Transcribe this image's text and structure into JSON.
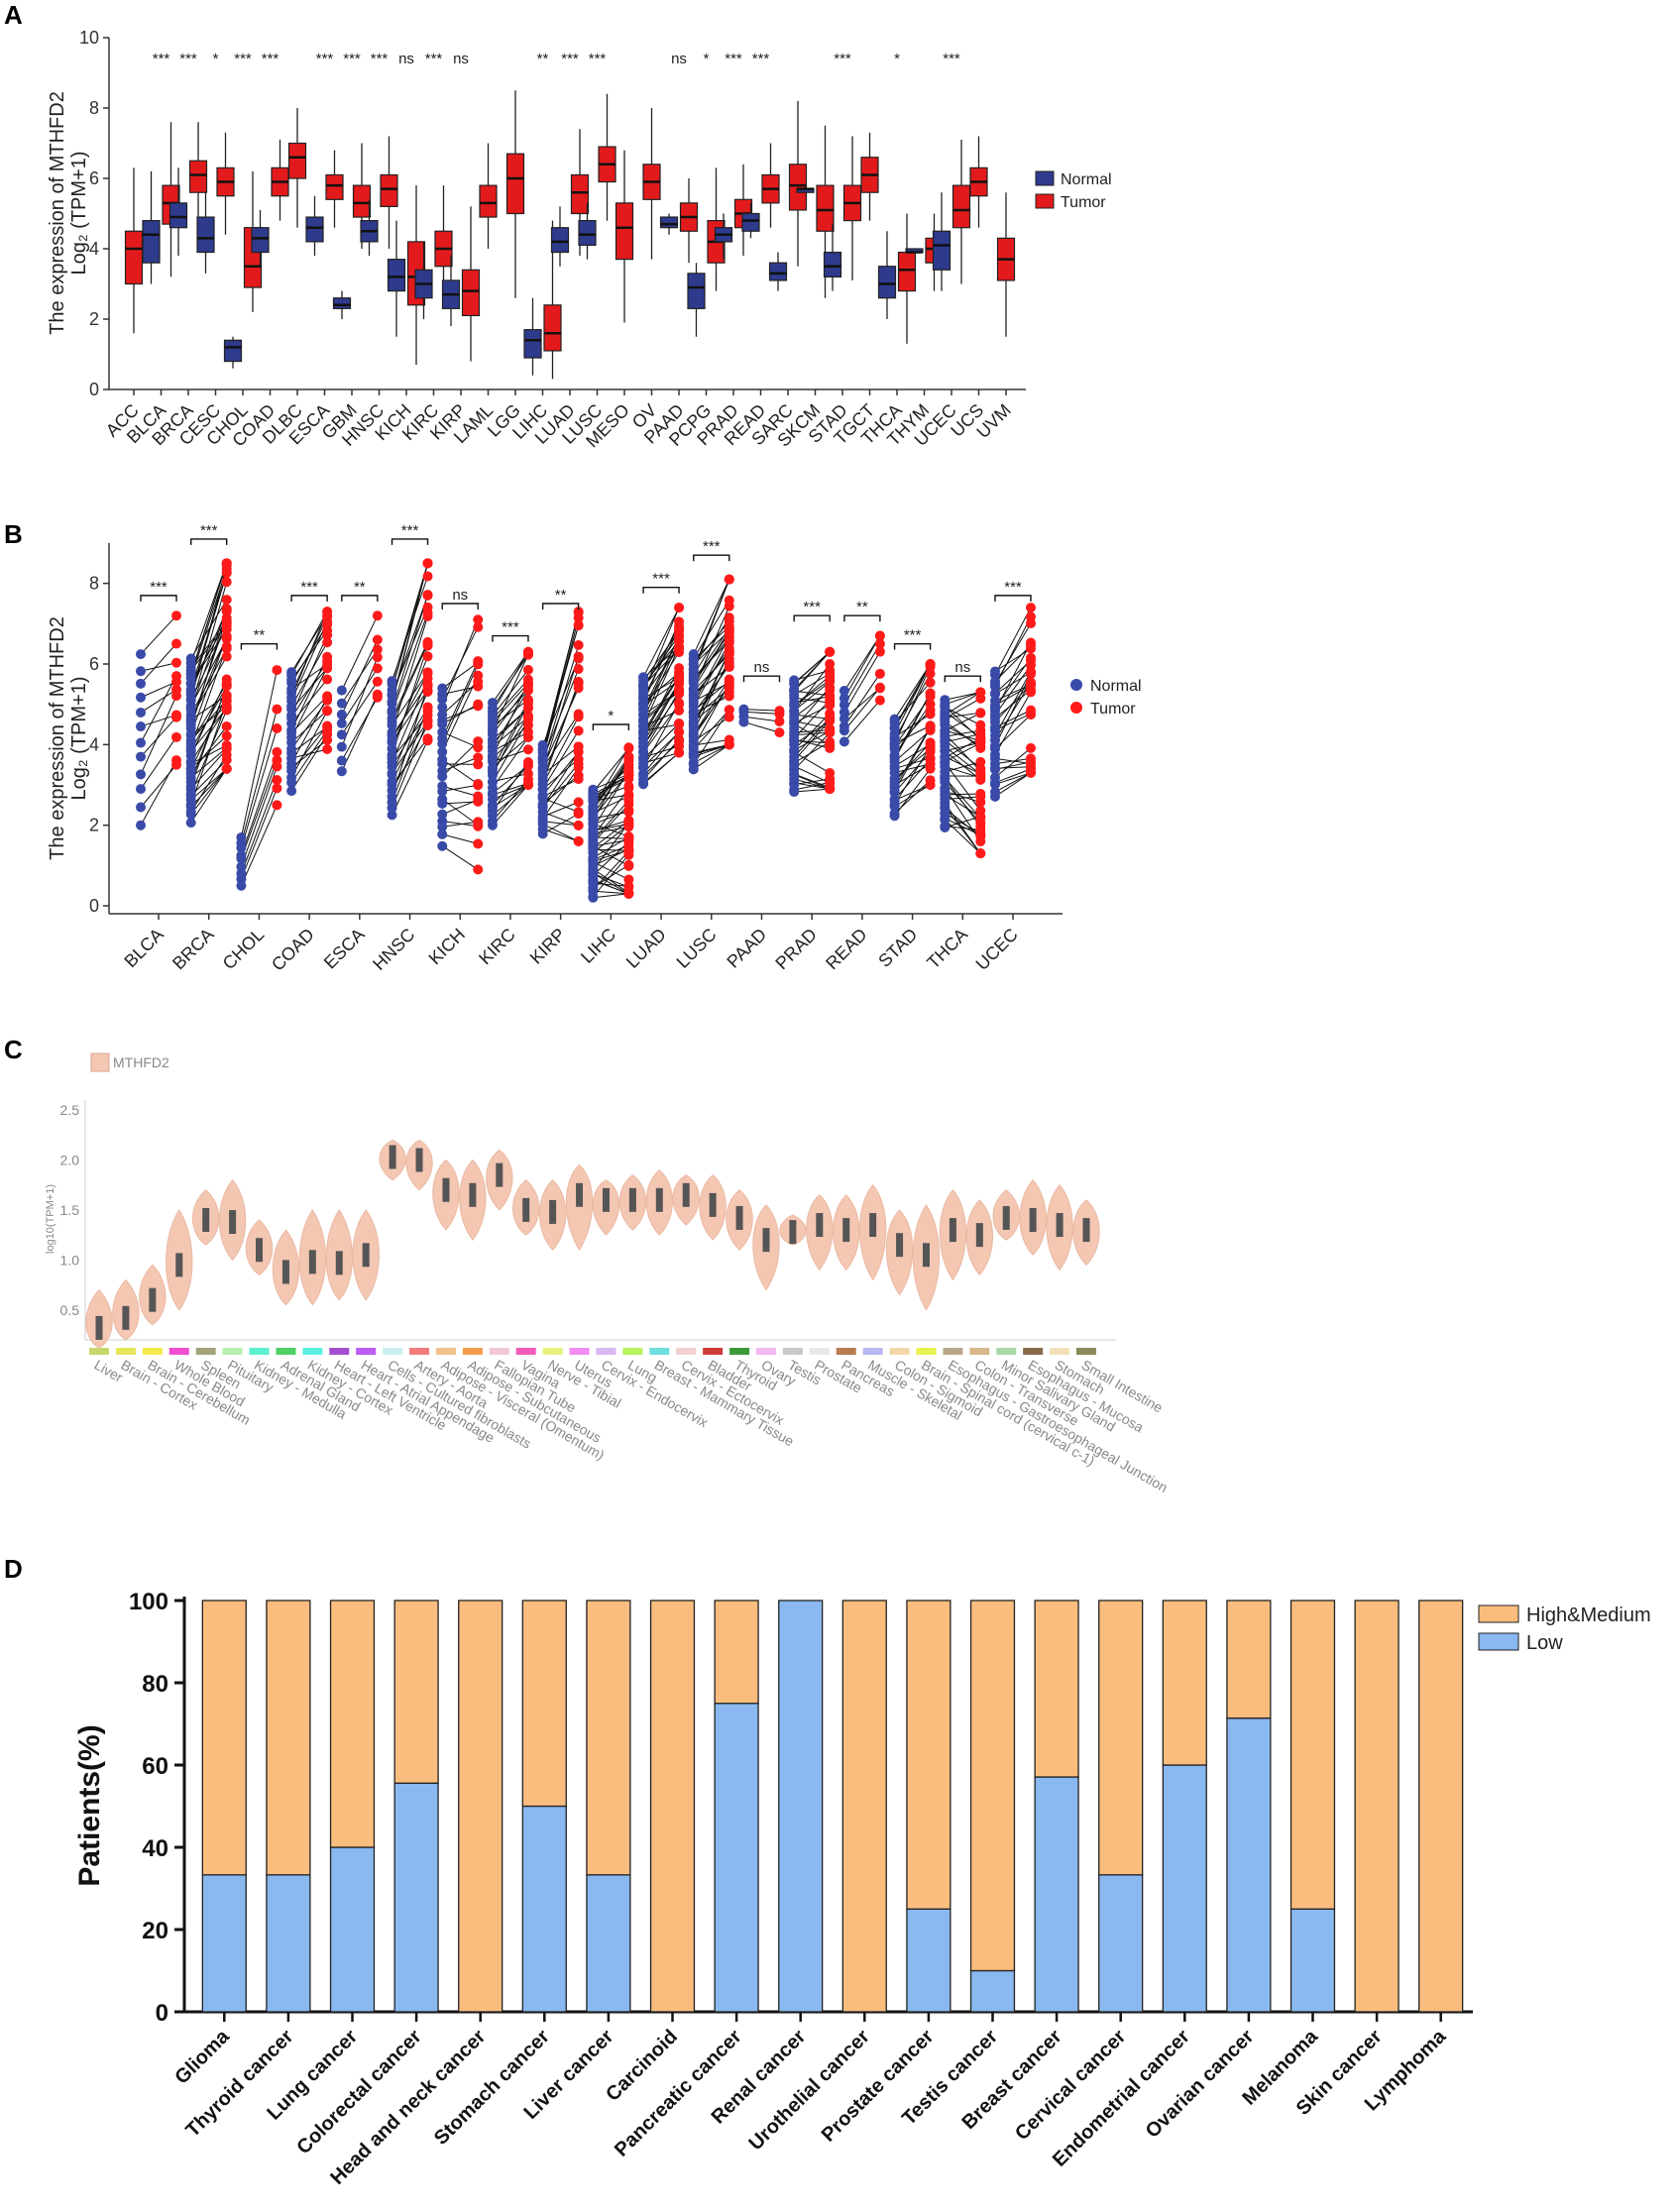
{
  "panels": {
    "a": "A",
    "b": "B",
    "c": "C",
    "d": "D"
  },
  "colors": {
    "normal": "#2e3a8c",
    "tumor": "#e31a1c",
    "violin": "#f4c7b3",
    "violin_box": "#555555",
    "high_medium": "#fbbd7e",
    "low": "#8ab8f0",
    "b_normal_pt": "#3a4aa8",
    "b_tumor_pt": "#ff1a1a"
  },
  "chart_data": [
    {
      "type": "box",
      "panel": "A",
      "ylabel_line1": "The expression of MTHFD2",
      "ylabel_line2": "Log₂ (TPM+1)",
      "ylim": [
        0,
        10
      ],
      "yticks": [
        0,
        2,
        4,
        6,
        8,
        10
      ],
      "legend": [
        "Normal",
        "Tumor"
      ],
      "categories": [
        "ACC",
        "BLCA",
        "BRCA",
        "CESC",
        "CHOL",
        "COAD",
        "DLBC",
        "ESCA",
        "GBM",
        "HNSC",
        "KICH",
        "KIRC",
        "KIRP",
        "LAML",
        "LGG",
        "LIHC",
        "LUAD",
        "LUSC",
        "MESO",
        "OV",
        "PAAD",
        "PCPG",
        "PRAD",
        "READ",
        "SARC",
        "SKCM",
        "STAD",
        "TGCT",
        "THCA",
        "THYM",
        "UCEC",
        "UCS",
        "UVM"
      ],
      "significance": [
        "",
        "***",
        "***",
        "*",
        "***",
        "***",
        "",
        "***",
        "***",
        "***",
        "ns",
        "***",
        "ns",
        "",
        "",
        "**",
        "***",
        "***",
        "",
        "",
        "ns",
        "*",
        "***",
        "***",
        "",
        "",
        "***",
        "",
        "*",
        "",
        "***",
        "",
        ""
      ],
      "normal": [
        null,
        {
          "min": 3.0,
          "q1": 3.6,
          "median": 4.4,
          "q3": 4.8,
          "max": 6.2
        },
        {
          "min": 3.8,
          "q1": 4.6,
          "median": 4.9,
          "q3": 5.3,
          "max": 6.3
        },
        {
          "min": 3.3,
          "q1": 3.9,
          "median": 4.3,
          "q3": 4.9,
          "max": 5.6
        },
        {
          "min": 0.6,
          "q1": 0.8,
          "median": 1.2,
          "q3": 1.4,
          "max": 1.5
        },
        {
          "min": 3.5,
          "q1": 3.9,
          "median": 4.3,
          "q3": 4.6,
          "max": 5.1
        },
        null,
        {
          "min": 3.8,
          "q1": 4.2,
          "median": 4.6,
          "q3": 4.9,
          "max": 5.5
        },
        {
          "min": 2.0,
          "q1": 2.3,
          "median": 2.4,
          "q3": 2.6,
          "max": 2.8
        },
        {
          "min": 3.8,
          "q1": 4.2,
          "median": 4.5,
          "q3": 4.8,
          "max": 5.4
        },
        {
          "min": 1.5,
          "q1": 2.8,
          "median": 3.2,
          "q3": 3.7,
          "max": 4.8
        },
        {
          "min": 2.0,
          "q1": 2.6,
          "median": 3.0,
          "q3": 3.4,
          "max": 4.2
        },
        {
          "min": 1.8,
          "q1": 2.3,
          "median": 2.7,
          "q3": 3.1,
          "max": 3.8
        },
        null,
        null,
        {
          "min": 0.4,
          "q1": 0.9,
          "median": 1.4,
          "q3": 1.7,
          "max": 2.6
        },
        {
          "min": 3.5,
          "q1": 3.9,
          "median": 4.2,
          "q3": 4.6,
          "max": 5.2
        },
        {
          "min": 3.7,
          "q1": 4.1,
          "median": 4.4,
          "q3": 4.8,
          "max": 5.3
        },
        null,
        null,
        {
          "min": 4.4,
          "q1": 4.6,
          "median": 4.7,
          "q3": 4.9,
          "max": 5.0
        },
        {
          "min": 1.5,
          "q1": 2.3,
          "median": 2.9,
          "q3": 3.3,
          "max": 3.6
        },
        {
          "min": 3.7,
          "q1": 4.2,
          "median": 4.4,
          "q3": 4.6,
          "max": 5.0
        },
        {
          "min": 4.3,
          "q1": 4.5,
          "median": 4.8,
          "q3": 5.0,
          "max": 5.3
        },
        {
          "min": 2.8,
          "q1": 3.1,
          "median": 3.3,
          "q3": 3.6,
          "max": 3.9
        },
        {
          "min": 5.6,
          "q1": 5.6,
          "median": 5.7,
          "q3": 5.7,
          "max": 5.8
        },
        {
          "min": 2.8,
          "q1": 3.2,
          "median": 3.5,
          "q3": 3.9,
          "max": 4.7
        },
        null,
        {
          "min": 2.0,
          "q1": 2.6,
          "median": 3.0,
          "q3": 3.5,
          "max": 4.5
        },
        {
          "min": 3.9,
          "q1": 3.9,
          "median": 3.9,
          "q3": 4.0,
          "max": 4.0
        },
        {
          "min": 2.8,
          "q1": 3.4,
          "median": 4.1,
          "q3": 4.5,
          "max": 5.6
        },
        null,
        null
      ],
      "tumor": [
        {
          "min": 1.6,
          "q1": 3.0,
          "median": 4.0,
          "q3": 4.5,
          "max": 6.3
        },
        {
          "min": 3.2,
          "q1": 4.7,
          "median": 5.3,
          "q3": 5.8,
          "max": 7.6
        },
        {
          "min": 4.6,
          "q1": 5.6,
          "median": 6.1,
          "q3": 6.5,
          "max": 7.6
        },
        {
          "min": 4.4,
          "q1": 5.5,
          "median": 5.9,
          "q3": 6.3,
          "max": 7.3
        },
        {
          "min": 2.2,
          "q1": 2.9,
          "median": 3.5,
          "q3": 4.6,
          "max": 6.2
        },
        {
          "min": 4.8,
          "q1": 5.5,
          "median": 5.9,
          "q3": 6.3,
          "max": 7.1
        },
        {
          "min": 4.6,
          "q1": 6.0,
          "median": 6.6,
          "q3": 7.0,
          "max": 8.0
        },
        {
          "min": 4.6,
          "q1": 5.4,
          "median": 5.8,
          "q3": 6.1,
          "max": 6.8
        },
        {
          "min": 4.0,
          "q1": 4.9,
          "median": 5.3,
          "q3": 5.8,
          "max": 7.0
        },
        {
          "min": 4.0,
          "q1": 5.2,
          "median": 5.7,
          "q3": 6.1,
          "max": 7.2
        },
        {
          "min": 0.7,
          "q1": 2.4,
          "median": 3.2,
          "q3": 4.2,
          "max": 5.8
        },
        {
          "min": 2.5,
          "q1": 3.5,
          "median": 4.0,
          "q3": 4.5,
          "max": 5.8
        },
        {
          "min": 0.8,
          "q1": 2.1,
          "median": 2.8,
          "q3": 3.4,
          "max": 5.2
        },
        {
          "min": 4.0,
          "q1": 4.9,
          "median": 5.3,
          "q3": 5.8,
          "max": 7.0
        },
        {
          "min": 2.6,
          "q1": 5.0,
          "median": 6.0,
          "q3": 6.7,
          "max": 8.5
        },
        {
          "min": 0.3,
          "q1": 1.1,
          "median": 1.6,
          "q3": 2.4,
          "max": 4.8
        },
        {
          "min": 3.8,
          "q1": 5.0,
          "median": 5.6,
          "q3": 6.1,
          "max": 7.4
        },
        {
          "min": 4.8,
          "q1": 5.9,
          "median": 6.4,
          "q3": 6.9,
          "max": 8.4
        },
        {
          "min": 1.9,
          "q1": 3.7,
          "median": 4.6,
          "q3": 5.3,
          "max": 6.8
        },
        {
          "min": 3.7,
          "q1": 5.4,
          "median": 5.9,
          "q3": 6.4,
          "max": 8.0
        },
        {
          "min": 3.6,
          "q1": 4.5,
          "median": 4.9,
          "q3": 5.3,
          "max": 6.0
        },
        {
          "min": 2.8,
          "q1": 3.6,
          "median": 4.2,
          "q3": 4.8,
          "max": 6.3
        },
        {
          "min": 3.8,
          "q1": 4.6,
          "median": 5.0,
          "q3": 5.4,
          "max": 6.4
        },
        {
          "min": 4.6,
          "q1": 5.3,
          "median": 5.7,
          "q3": 6.1,
          "max": 7.0
        },
        {
          "min": 3.5,
          "q1": 5.1,
          "median": 5.8,
          "q3": 6.4,
          "max": 8.2
        },
        {
          "min": 2.6,
          "q1": 4.5,
          "median": 5.1,
          "q3": 5.8,
          "max": 7.5
        },
        {
          "min": 3.1,
          "q1": 4.8,
          "median": 5.3,
          "q3": 5.8,
          "max": 7.2
        },
        {
          "min": 4.8,
          "q1": 5.6,
          "median": 6.1,
          "q3": 6.6,
          "max": 7.3
        },
        {
          "min": 1.3,
          "q1": 2.8,
          "median": 3.4,
          "q3": 3.9,
          "max": 5.0
        },
        {
          "min": 2.8,
          "q1": 3.6,
          "median": 4.0,
          "q3": 4.3,
          "max": 5.0
        },
        {
          "min": 3.0,
          "q1": 4.6,
          "median": 5.1,
          "q3": 5.8,
          "max": 7.1
        },
        {
          "min": 4.6,
          "q1": 5.5,
          "median": 5.9,
          "q3": 6.3,
          "max": 7.2
        },
        {
          "min": 1.5,
          "q1": 3.1,
          "median": 3.7,
          "q3": 4.3,
          "max": 5.6
        }
      ]
    },
    {
      "type": "paired-scatter",
      "panel": "B",
      "ylabel_line1": "The expression of MTHFD2",
      "ylabel_line2": "Log₂ (TPM+1)",
      "ylim": [
        0,
        9
      ],
      "yticks": [
        0,
        2,
        4,
        6,
        8
      ],
      "legend": [
        "Normal",
        "Tumor"
      ],
      "categories": [
        "BLCA",
        "BRCA",
        "CHOL",
        "COAD",
        "ESCA",
        "HNSC",
        "KICH",
        "KIRC",
        "KIRP",
        "LIHC",
        "LUAD",
        "LUSC",
        "PAAD",
        "PRAD",
        "READ",
        "STAD",
        "THCA",
        "UCEC"
      ],
      "significance": [
        "***",
        "***",
        "**",
        "***",
        "**",
        "***",
        "ns",
        "***",
        "**",
        "*",
        "***",
        "***",
        "ns",
        "***",
        "**",
        "***",
        "ns",
        "***"
      ],
      "bracket_y": [
        7.7,
        9.1,
        6.5,
        7.7,
        7.7,
        9.1,
        7.5,
        6.7,
        7.5,
        4.5,
        7.9,
        8.7,
        5.7,
        7.2,
        7.2,
        6.5,
        5.7,
        7.7
      ],
      "normal_range": [
        [
          2.0,
          6.2
        ],
        [
          2.1,
          6.1
        ],
        [
          0.5,
          1.7
        ],
        [
          2.9,
          5.8
        ],
        [
          3.3,
          5.3
        ],
        [
          2.3,
          5.6
        ],
        [
          1.5,
          5.4
        ],
        [
          2.0,
          5.0
        ],
        [
          1.8,
          4.0
        ],
        [
          0.2,
          2.9
        ],
        [
          3.0,
          5.7
        ],
        [
          3.4,
          6.2
        ],
        [
          4.6,
          4.9
        ],
        [
          2.8,
          5.6
        ],
        [
          4.1,
          5.3
        ],
        [
          2.2,
          4.6
        ],
        [
          1.9,
          5.1
        ],
        [
          2.7,
          5.8
        ]
      ],
      "tumor_range": [
        [
          3.5,
          7.2
        ],
        [
          3.4,
          8.5
        ],
        [
          2.5,
          6.0
        ],
        [
          3.8,
          7.3
        ],
        [
          5.0,
          7.2
        ],
        [
          4.1,
          8.5
        ],
        [
          0.9,
          7.1
        ],
        [
          3.0,
          6.3
        ],
        [
          1.6,
          7.3
        ],
        [
          0.3,
          4.0
        ],
        [
          3.8,
          7.4
        ],
        [
          4.0,
          8.1
        ],
        [
          4.3,
          5.0
        ],
        [
          2.9,
          6.3
        ],
        [
          5.1,
          6.7
        ],
        [
          3.0,
          6.0
        ],
        [
          1.3,
          5.3
        ],
        [
          3.3,
          7.4
        ]
      ],
      "pairs": [
        12,
        48,
        9,
        26,
        8,
        30,
        24,
        34,
        30,
        50,
        44,
        44,
        4,
        40,
        8,
        30,
        42,
        30
      ]
    },
    {
      "type": "violin",
      "panel": "C",
      "legend": [
        "MTHFD2"
      ],
      "ylabel": "log10(TPM+1)",
      "ylim": [
        0.2,
        2.6
      ],
      "yticks": [
        0.5,
        1.0,
        1.5,
        2.0,
        2.5
      ],
      "tissues": [
        "Liver",
        "Brain - Cortex",
        "Brain - Cerebellum",
        "Whole Blood",
        "Spleen",
        "Pituitary",
        "Kidney - Medulla",
        "Adrenal Gland",
        "Kidney - Cortex",
        "Heart - Left Ventricle",
        "Heart - Atrial Appendage",
        "Cells - Cultured fibroblasts",
        "Artery - Aorta",
        "Adipose - Visceral (Omentum)",
        "Adipose - Subcutaneous",
        "Fallopian Tube",
        "Vagina",
        "Nerve - Tibial",
        "Uterus",
        "Cervix - Endocervix",
        "Lung",
        "Breast - Mammary Tissue",
        "Cervix - Ectocervix",
        "Bladder",
        "Thyroid",
        "Ovary",
        "Testis",
        "Prostate",
        "Pancreas",
        "Muscle - Skeletal",
        "Colon - Sigmoid",
        "Brain - Spinal cord (cervical c-1)",
        "Esophagus - Gastroesophageal Junction",
        "Colon - Transverse",
        "Minor Salivary Gland",
        "Esophagus - Mucosa",
        "Stomach",
        "Small Intestine"
      ],
      "tissue_colors": [
        "#c9d66b",
        "#e6e65a",
        "#f2ea4a",
        "#f04fd0",
        "#a3a37a",
        "#b8f0b0",
        "#5cf0d0",
        "#4fcf66",
        "#5af0e0",
        "#a24fcf",
        "#bb5cf2",
        "#c8eef2",
        "#f27c7c",
        "#f2c28c",
        "#f29c4a",
        "#f2c8d8",
        "#f25cb8",
        "#e6f27c",
        "#f28cf2",
        "#d8b8f2",
        "#b8f25c",
        "#6ee0e0",
        "#f2d0d0",
        "#cf3a3a",
        "#3a9a3a",
        "#f2b8f2",
        "#c8c8c8",
        "#e8e8e8",
        "#b87c4f",
        "#b8b8f2",
        "#f2d8a8",
        "#e8f24f",
        "#b8a88a",
        "#d8b88a",
        "#a8d8a8",
        "#8a6a4a",
        "#f2e0b8",
        "#8a8a5a"
      ],
      "medians": [
        0.32,
        0.42,
        0.6,
        0.95,
        1.4,
        1.38,
        1.1,
        0.88,
        0.98,
        0.97,
        1.05,
        2.03,
        2.0,
        1.7,
        1.65,
        1.85,
        1.5,
        1.48,
        1.65,
        1.6,
        1.6,
        1.6,
        1.65,
        1.55,
        1.42,
        1.2,
        1.28,
        1.35,
        1.3,
        1.35,
        1.15,
        1.05,
        1.3,
        1.25,
        1.42,
        1.4,
        1.35,
        1.3
      ],
      "lows": [
        0.12,
        0.2,
        0.35,
        0.5,
        1.15,
        1.0,
        0.85,
        0.55,
        0.55,
        0.6,
        0.6,
        1.8,
        1.7,
        1.3,
        1.2,
        1.5,
        1.25,
        1.1,
        1.1,
        1.25,
        1.3,
        1.25,
        1.35,
        1.2,
        1.1,
        0.7,
        1.15,
        0.9,
        0.9,
        0.8,
        0.65,
        0.5,
        0.8,
        0.85,
        1.2,
        1.05,
        0.9,
        0.95
      ],
      "highs": [
        0.7,
        0.8,
        0.95,
        1.5,
        1.7,
        1.8,
        1.4,
        1.3,
        1.5,
        1.5,
        1.5,
        2.2,
        2.2,
        2.0,
        2.0,
        2.1,
        1.8,
        1.8,
        1.95,
        1.8,
        1.85,
        1.9,
        1.85,
        1.85,
        1.7,
        1.55,
        1.45,
        1.65,
        1.65,
        1.75,
        1.5,
        1.55,
        1.7,
        1.6,
        1.7,
        1.8,
        1.75,
        1.6
      ]
    },
    {
      "type": "bar",
      "stacked": true,
      "panel": "D",
      "ylabel": "Patients(%)",
      "ylim": [
        0,
        100
      ],
      "yticks": [
        0,
        20,
        40,
        60,
        80,
        100
      ],
      "categories": [
        "Glioma",
        "Thyroid cancer",
        "Lung cancer",
        "Colorectal cancer",
        "Head and neck cancer",
        "Stomach cancer",
        "Liver cancer",
        "Carcinoid",
        "Pancreatic cancer",
        "Renal cancer",
        "Urothelial cancer",
        "Prostate cancer",
        "Testis cancer",
        "Breast cancer",
        "Cervical cancer",
        "Endometrial cancer",
        "Ovarian cancer",
        "Melanoma",
        "Skin cancer",
        "Lymphoma"
      ],
      "series": [
        {
          "name": "High&Medium",
          "values": [
            66.7,
            66.7,
            60.0,
            44.4,
            100,
            50.0,
            66.7,
            100,
            25.0,
            0,
            100,
            75.0,
            90.0,
            42.9,
            66.7,
            40.0,
            28.6,
            75.0,
            100,
            100
          ]
        },
        {
          "name": "Low",
          "values": [
            33.3,
            33.3,
            40.0,
            55.6,
            0,
            50.0,
            33.3,
            0,
            75.0,
            100,
            0,
            25.0,
            10.0,
            57.1,
            33.3,
            60.0,
            71.4,
            25.0,
            0,
            0
          ]
        }
      ]
    }
  ]
}
